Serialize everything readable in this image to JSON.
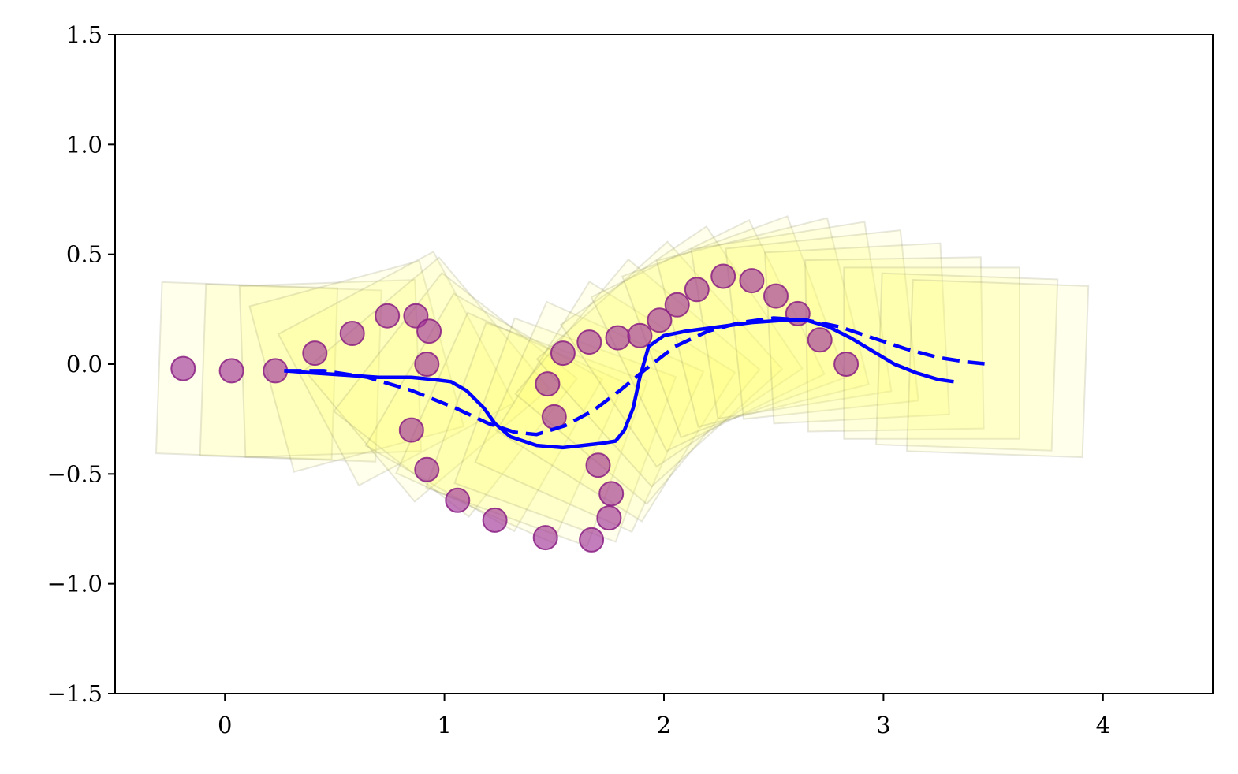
{
  "chart_data": {
    "type": "scatter",
    "title": "",
    "xlabel": "",
    "ylabel": "",
    "xlim": [
      -0.5,
      4.5
    ],
    "ylim": [
      -1.5,
      1.5
    ],
    "x_ticks": [
      0,
      1,
      2,
      3,
      4
    ],
    "x_tick_labels": [
      "0",
      "1",
      "2",
      "3",
      "4"
    ],
    "y_ticks": [
      1.5,
      1.0,
      0.5,
      0.0,
      -0.5,
      -1.0,
      -1.5
    ],
    "y_tick_labels": [
      "1.5",
      "1.0",
      "0.5",
      "0.0",
      "−0.5",
      "−1.0",
      "−1.5"
    ],
    "grid": false,
    "legend": "none",
    "series": [
      {
        "kind": "scatter",
        "color": "#a3389a",
        "points": [
          [
            -0.19,
            -0.02
          ],
          [
            0.03,
            -0.03
          ],
          [
            0.23,
            -0.03
          ],
          [
            0.41,
            0.05
          ],
          [
            0.58,
            0.14
          ],
          [
            0.74,
            0.22
          ],
          [
            0.87,
            0.22
          ],
          [
            0.93,
            0.15
          ],
          [
            0.92,
            0.0
          ],
          [
            0.85,
            -0.3
          ],
          [
            0.92,
            -0.48
          ],
          [
            1.06,
            -0.62
          ],
          [
            1.23,
            -0.71
          ],
          [
            1.46,
            -0.79
          ],
          [
            1.67,
            -0.8
          ],
          [
            1.75,
            -0.7
          ],
          [
            1.76,
            -0.59
          ],
          [
            1.7,
            -0.46
          ],
          [
            1.5,
            -0.24
          ],
          [
            1.47,
            -0.09
          ],
          [
            1.54,
            0.05
          ],
          [
            1.66,
            0.1
          ],
          [
            1.79,
            0.12
          ],
          [
            1.89,
            0.13
          ],
          [
            1.98,
            0.2
          ],
          [
            2.06,
            0.27
          ],
          [
            2.15,
            0.34
          ],
          [
            2.27,
            0.4
          ],
          [
            2.4,
            0.38
          ],
          [
            2.51,
            0.31
          ],
          [
            2.61,
            0.23
          ],
          [
            2.71,
            0.11
          ],
          [
            2.83,
            0.0
          ]
        ]
      },
      {
        "kind": "line",
        "style": "solid",
        "color": "#0000ff",
        "points": [
          [
            0.27,
            -0.03
          ],
          [
            0.4,
            -0.04
          ],
          [
            0.55,
            -0.05
          ],
          [
            0.7,
            -0.06
          ],
          [
            0.85,
            -0.06
          ],
          [
            0.95,
            -0.07
          ],
          [
            1.03,
            -0.08
          ],
          [
            1.1,
            -0.12
          ],
          [
            1.18,
            -0.2
          ],
          [
            1.23,
            -0.27
          ],
          [
            1.3,
            -0.33
          ],
          [
            1.42,
            -0.37
          ],
          [
            1.54,
            -0.38
          ],
          [
            1.63,
            -0.37
          ],
          [
            1.72,
            -0.36
          ],
          [
            1.78,
            -0.35
          ],
          [
            1.82,
            -0.3
          ],
          [
            1.86,
            -0.2
          ],
          [
            1.89,
            -0.06
          ],
          [
            1.93,
            0.08
          ],
          [
            2.0,
            0.13
          ],
          [
            2.1,
            0.15
          ],
          [
            2.25,
            0.17
          ],
          [
            2.4,
            0.19
          ],
          [
            2.55,
            0.2
          ],
          [
            2.65,
            0.2
          ],
          [
            2.75,
            0.17
          ],
          [
            2.85,
            0.12
          ],
          [
            2.95,
            0.06
          ],
          [
            3.05,
            -0.0
          ],
          [
            3.15,
            -0.04
          ],
          [
            3.25,
            -0.07
          ],
          [
            3.32,
            -0.08
          ]
        ]
      },
      {
        "kind": "line",
        "style": "dashed",
        "color": "#0000ff",
        "points": [
          [
            0.27,
            -0.03
          ],
          [
            0.45,
            -0.03
          ],
          [
            0.65,
            -0.06
          ],
          [
            0.85,
            -0.12
          ],
          [
            1.05,
            -0.2
          ],
          [
            1.2,
            -0.27
          ],
          [
            1.32,
            -0.31
          ],
          [
            1.42,
            -0.32
          ],
          [
            1.55,
            -0.28
          ],
          [
            1.68,
            -0.21
          ],
          [
            1.8,
            -0.12
          ],
          [
            1.92,
            -0.02
          ],
          [
            2.05,
            0.08
          ],
          [
            2.2,
            0.15
          ],
          [
            2.35,
            0.19
          ],
          [
            2.5,
            0.21
          ],
          [
            2.65,
            0.2
          ],
          [
            2.8,
            0.17
          ],
          [
            2.95,
            0.12
          ],
          [
            3.1,
            0.07
          ],
          [
            3.25,
            0.03
          ],
          [
            3.38,
            0.01
          ],
          [
            3.48,
            0.0
          ]
        ]
      },
      {
        "kind": "rotated-boxes",
        "color": "#ffff66",
        "width": 0.8,
        "height": 0.78,
        "boxes": [
          [
            0.1,
            -0.03,
            2
          ],
          [
            0.3,
            -0.04,
            2
          ],
          [
            0.48,
            -0.02,
            -2
          ],
          [
            0.6,
            -0.01,
            -15
          ],
          [
            0.78,
            -0.02,
            -28
          ],
          [
            0.92,
            -0.07,
            -40
          ],
          [
            1.05,
            -0.14,
            -52
          ],
          [
            1.18,
            -0.22,
            -60
          ],
          [
            1.3,
            -0.29,
            -66
          ],
          [
            1.42,
            -0.32,
            -70
          ],
          [
            1.55,
            -0.3,
            -70
          ],
          [
            1.66,
            -0.24,
            -66
          ],
          [
            1.78,
            -0.17,
            -58
          ],
          [
            1.88,
            -0.08,
            -50
          ],
          [
            1.98,
            0.0,
            -42
          ],
          [
            2.08,
            0.08,
            -34
          ],
          [
            2.2,
            0.13,
            -26
          ],
          [
            2.32,
            0.17,
            -20
          ],
          [
            2.45,
            0.19,
            -14
          ],
          [
            2.58,
            0.2,
            -9
          ],
          [
            2.72,
            0.18,
            -6
          ],
          [
            2.88,
            0.14,
            -3
          ],
          [
            3.05,
            0.09,
            -1
          ],
          [
            3.22,
            0.05,
            0
          ],
          [
            3.38,
            0.01,
            2
          ],
          [
            3.52,
            -0.02,
            2
          ]
        ]
      }
    ]
  }
}
